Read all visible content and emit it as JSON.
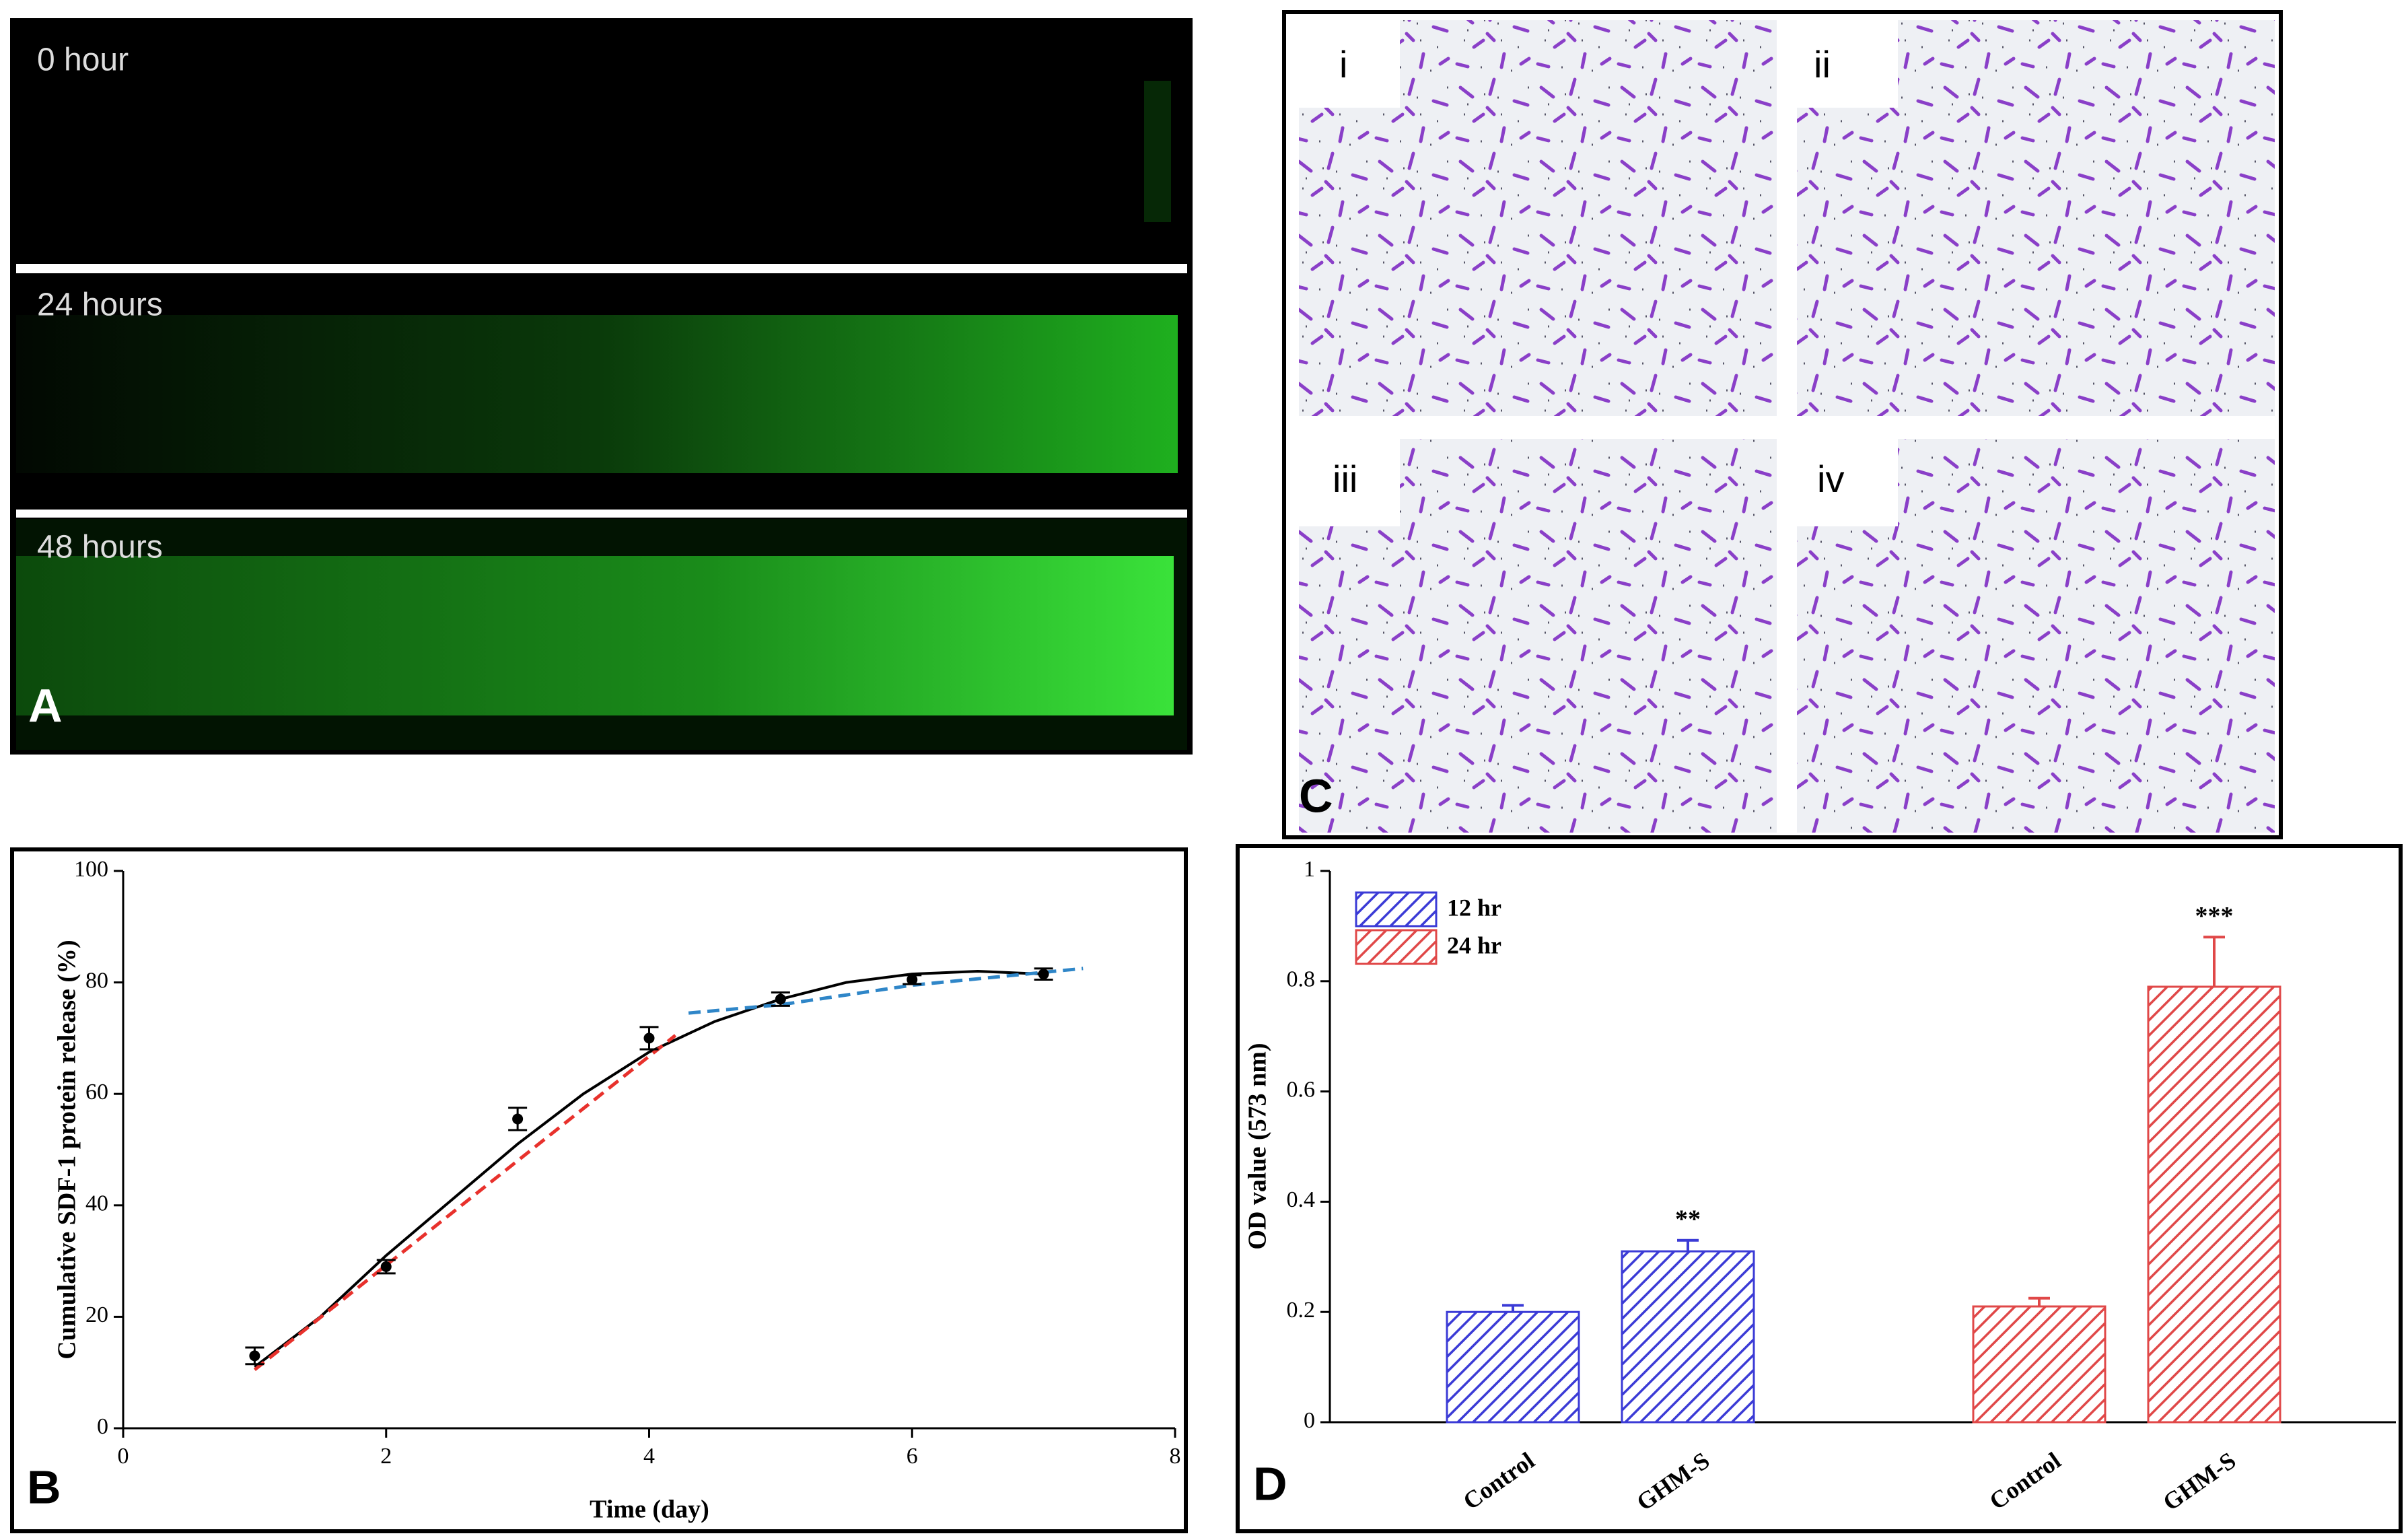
{
  "panels": {
    "A": {
      "label": "A",
      "strips": [
        "0 hour",
        "24 hours",
        "48 hours"
      ]
    },
    "C": {
      "label": "C",
      "images": [
        "i",
        "ii",
        "iii",
        "iv"
      ]
    }
  },
  "chart_data": [
    {
      "type": "scatter",
      "panel_label": "B",
      "xlabel": "Time (day)",
      "ylabel": "Cumulative SDF-1 protein release (%)",
      "x": [
        1,
        2,
        3,
        4,
        5,
        6,
        7
      ],
      "values": [
        13,
        29,
        55.5,
        70,
        77,
        80.5,
        81.5
      ],
      "errors": [
        1.5,
        1.2,
        2,
        2,
        1.2,
        0.8,
        1
      ],
      "color": "#000000",
      "curves": [
        {
          "color": "#000000",
          "style": "solid",
          "x": [
            1,
            1.5,
            2,
            2.5,
            3,
            3.5,
            4,
            4.5,
            5,
            5.5,
            6,
            6.5,
            7
          ],
          "values": [
            11,
            20,
            31,
            41,
            51,
            60,
            67.5,
            73,
            77,
            80,
            81.5,
            82,
            81.5
          ]
        },
        {
          "color": "#e8312c",
          "style": "dashed",
          "x": [
            1,
            4.2
          ],
          "values": [
            10.5,
            70.5
          ]
        },
        {
          "color": "#2f86c8",
          "style": "dashed",
          "x": [
            4.3,
            5,
            6,
            7.3
          ],
          "values": [
            74.5,
            76,
            79.5,
            82.5
          ]
        }
      ],
      "xlim": [
        0,
        8
      ],
      "xticks": [
        0,
        2,
        4,
        6,
        8
      ],
      "ylim": [
        0,
        100
      ],
      "yticks": [
        0,
        20,
        40,
        60,
        80,
        100
      ]
    },
    {
      "type": "bar",
      "panel_label": "D",
      "ylabel": "OD value (573 nm)",
      "categories": [
        "Control",
        "GHM-S"
      ],
      "series": [
        {
          "name": "12 hr",
          "color": "#3b3bd6",
          "values": [
            0.2,
            0.31
          ],
          "errors": [
            0.012,
            0.02
          ],
          "annotations": [
            null,
            "**"
          ]
        },
        {
          "name": "24 hr",
          "color": "#e04848",
          "values": [
            0.21,
            0.79
          ],
          "errors": [
            0.015,
            0.09
          ],
          "annotations": [
            null,
            "***"
          ]
        }
      ],
      "legend": "upper left",
      "ylim": [
        0,
        1
      ],
      "yticks": [
        0,
        0.2,
        0.4,
        0.6,
        0.8,
        1
      ]
    }
  ]
}
